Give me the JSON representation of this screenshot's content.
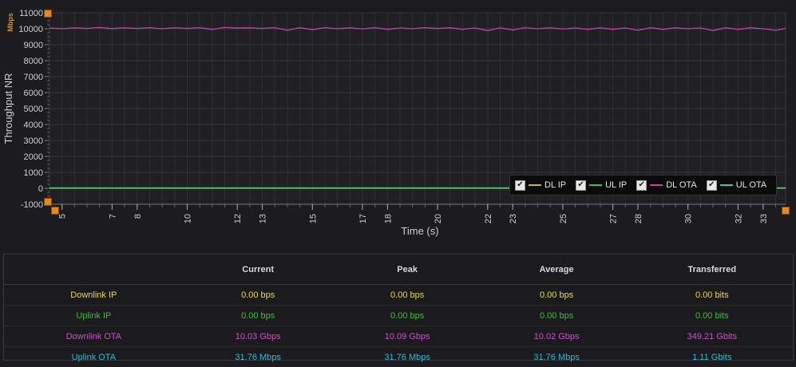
{
  "chart_data": {
    "type": "line",
    "ylabel": "Throughput NR",
    "yunit": "Mbps",
    "xlabel": "Time (s)",
    "ylim": [
      -1000,
      11000
    ],
    "yticks": [
      -1000,
      0,
      1000,
      2000,
      3000,
      4000,
      5000,
      6000,
      7000,
      8000,
      9000,
      10000,
      11000
    ],
    "xlim": [
      4.5,
      33.9
    ],
    "xticks": [
      5,
      7,
      8,
      10,
      12,
      13,
      15,
      17,
      18,
      20,
      22,
      23,
      25,
      27,
      28,
      30,
      32,
      33
    ],
    "grid": true,
    "legend_position": "bottom-right",
    "series": [
      {
        "name": "DL IP",
        "color": "#c9b53a",
        "checked": true,
        "points": [
          [
            4.5,
            0
          ],
          [
            33.9,
            0
          ]
        ]
      },
      {
        "name": "UL IP",
        "color": "#3fbf3f",
        "checked": true,
        "points": [
          [
            4.5,
            0
          ],
          [
            33.9,
            0
          ]
        ]
      },
      {
        "name": "DL OTA",
        "color": "#c43fb0",
        "checked": true,
        "points": [
          [
            4.5,
            10050
          ],
          [
            5,
            10000
          ],
          [
            5.5,
            10060
          ],
          [
            6,
            10020
          ],
          [
            6.5,
            10080
          ],
          [
            7,
            10010
          ],
          [
            7.5,
            10060
          ],
          [
            8,
            10020
          ],
          [
            8.5,
            10070
          ],
          [
            9,
            10000
          ],
          [
            9.5,
            10060
          ],
          [
            10,
            10020
          ],
          [
            10.5,
            10070
          ],
          [
            11,
            9950
          ],
          [
            11.5,
            10080
          ],
          [
            12,
            10040
          ],
          [
            12.5,
            10060
          ],
          [
            13,
            10020
          ],
          [
            13.5,
            10070
          ],
          [
            14,
            9900
          ],
          [
            14.5,
            10060
          ],
          [
            15,
            9940
          ],
          [
            15.5,
            10070
          ],
          [
            16,
            10000
          ],
          [
            16.5,
            10060
          ],
          [
            17,
            9980
          ],
          [
            17.5,
            10070
          ],
          [
            18,
            9960
          ],
          [
            18.5,
            10050
          ],
          [
            19,
            10000
          ],
          [
            19.5,
            10070
          ],
          [
            20,
            10020
          ],
          [
            20.5,
            10060
          ],
          [
            21,
            9960
          ],
          [
            21.5,
            10050
          ],
          [
            22,
            9880
          ],
          [
            22.5,
            10060
          ],
          [
            23,
            9920
          ],
          [
            23.5,
            10070
          ],
          [
            24,
            10000
          ],
          [
            24.5,
            10060
          ],
          [
            25,
            9980
          ],
          [
            25.5,
            10050
          ],
          [
            26,
            9960
          ],
          [
            26.5,
            10060
          ],
          [
            27,
            9960
          ],
          [
            27.5,
            10050
          ],
          [
            28,
            9900
          ],
          [
            28.5,
            10060
          ],
          [
            29,
            9960
          ],
          [
            29.5,
            10060
          ],
          [
            30,
            10000
          ],
          [
            30.5,
            10050
          ],
          [
            31,
            9880
          ],
          [
            31.5,
            10060
          ],
          [
            32,
            9960
          ],
          [
            32.5,
            10060
          ],
          [
            33,
            10000
          ],
          [
            33.5,
            9900
          ],
          [
            33.9,
            10020
          ]
        ]
      },
      {
        "name": "UL OTA",
        "color": "#32c8b0",
        "checked": true,
        "points": [
          [
            4.5,
            31.76
          ],
          [
            33.9,
            31.76
          ]
        ]
      }
    ],
    "check_mark": "✔"
  },
  "table": {
    "headers": [
      "",
      "Current",
      "Peak",
      "Average",
      "Transferred"
    ],
    "rows": [
      {
        "label": "Downlink IP",
        "current": "0.00 bps",
        "peak": "0.00 bps",
        "average": "0.00 bps",
        "transferred": "0.00 bits",
        "color": "yellow"
      },
      {
        "label": "Uplink IP",
        "current": "0.00 bps",
        "peak": "0.00 bps",
        "average": "0.00 bps",
        "transferred": "0.00 bits",
        "color": "green"
      },
      {
        "label": "Downlink OTA",
        "current": "10.03 Gbps",
        "peak": "10.09 Gbps",
        "average": "10.02 Gbps",
        "transferred": "349.21 Gbits",
        "color": "magenta"
      },
      {
        "label": "Uplink OTA",
        "current": "31.76 Mbps",
        "peak": "31.76 Mbps",
        "average": "31.76 Mbps",
        "transferred": "1.11 Gbits",
        "color": "cyan"
      }
    ]
  }
}
